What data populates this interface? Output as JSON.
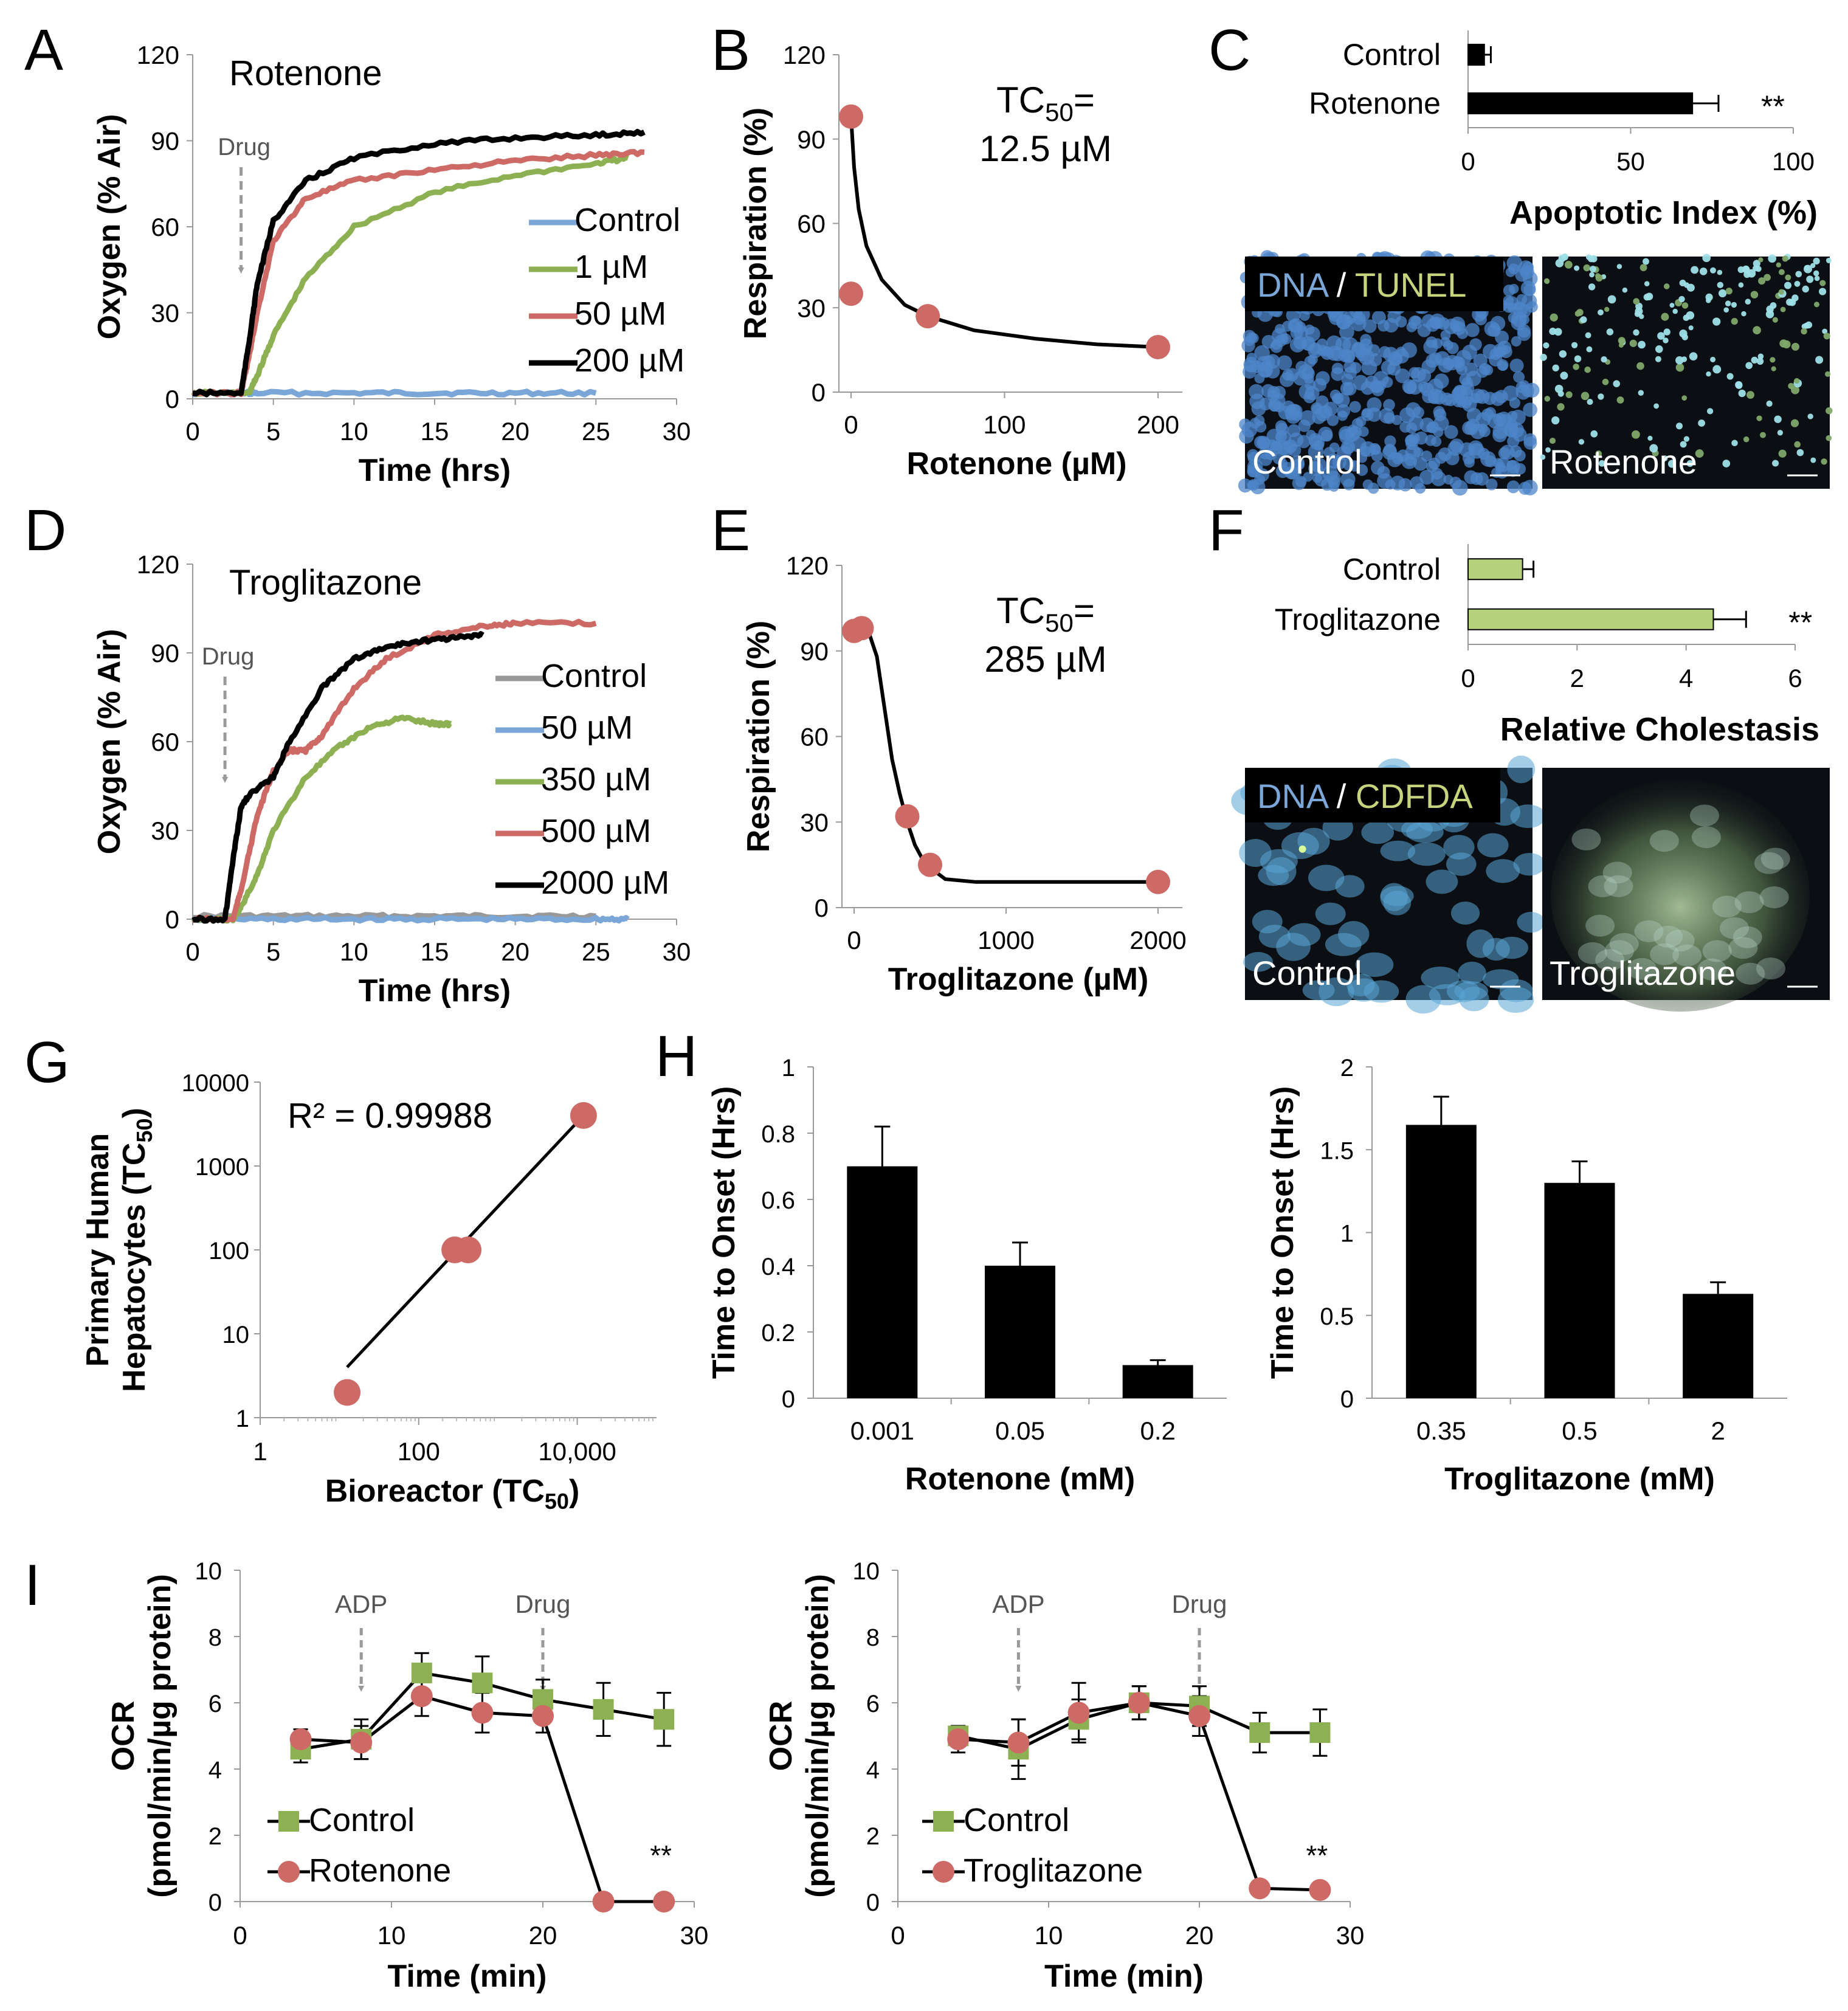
{
  "colors": {
    "control_blue": "#7aa6d8",
    "green": "#8db052",
    "red": "#cd6a66",
    "black": "#000000",
    "gray": "#999999",
    "dark_gray": "#888888",
    "bar_green": "#b5d17b",
    "micro_bg": "#0b0f14"
  },
  "panel_letters": [
    "A",
    "B",
    "C",
    "D",
    "E",
    "F",
    "G",
    "H",
    "I"
  ],
  "chart_data": [
    {
      "id": "A",
      "type": "line",
      "title": "Rotenone",
      "xlabel": "Time (hrs)",
      "ylabel": "Oxygen (% Air)",
      "xlim": [
        0,
        30
      ],
      "ylim": [
        0,
        120
      ],
      "xticks": [
        "0",
        "5",
        "10",
        "15",
        "20",
        "25",
        "30"
      ],
      "yticks": [
        "0",
        "30",
        "60",
        "90",
        "120"
      ],
      "annotation": "Drug",
      "annotation_x": 3,
      "series": [
        {
          "name": "Control",
          "color": "#7aa6d8",
          "x": [
            0,
            3,
            4,
            10,
            15,
            20,
            25
          ],
          "y": [
            2,
            2,
            2,
            2,
            2,
            2,
            2
          ]
        },
        {
          "name": "1 µM",
          "color": "#8db052",
          "x": [
            0,
            3.5,
            4,
            5,
            7,
            10,
            15,
            20,
            25,
            27
          ],
          "y": [
            2,
            2,
            8,
            22,
            42,
            60,
            72,
            78,
            82,
            84
          ]
        },
        {
          "name": "50 µM",
          "color": "#cd6a66",
          "x": [
            0,
            3,
            3.5,
            4,
            5,
            7,
            10,
            15,
            20,
            25,
            28
          ],
          "y": [
            2,
            2,
            15,
            30,
            55,
            70,
            76,
            80,
            83,
            85,
            86
          ]
        },
        {
          "name": "200 µM",
          "color": "#000000",
          "x": [
            0,
            3,
            3.5,
            4,
            5,
            7,
            10,
            15,
            20,
            25,
            28
          ],
          "y": [
            2,
            2,
            20,
            40,
            62,
            76,
            84,
            89,
            91,
            92,
            93
          ]
        }
      ]
    },
    {
      "id": "B",
      "type": "scatter",
      "title": "TC50= 12.5 µM",
      "xlabel": "Rotenone (µM)",
      "ylabel": "Respiration (%)",
      "xlim": [
        0,
        200
      ],
      "ylim": [
        0,
        120
      ],
      "xticks": [
        "0",
        "100",
        "200"
      ],
      "yticks": [
        "0",
        "30",
        "60",
        "90",
        "120"
      ],
      "points": [
        {
          "x": 0,
          "y": 98
        },
        {
          "x": 0,
          "y": 35
        },
        {
          "x": 50,
          "y": 27
        },
        {
          "x": 200,
          "y": 16
        }
      ],
      "fit": {
        "x": [
          0,
          2,
          5,
          10,
          20,
          35,
          50,
          80,
          120,
          160,
          200
        ],
        "y": [
          98,
          80,
          65,
          52,
          40,
          31,
          27,
          22,
          19,
          17,
          16
        ]
      }
    },
    {
      "id": "C",
      "type": "bar",
      "orientation": "horizontal",
      "xlabel": "Apoptotic Index (%)",
      "categories": [
        "Control",
        "Rotenone"
      ],
      "values": [
        5,
        69
      ],
      "errors": [
        2,
        8
      ],
      "xlim": [
        0,
        100
      ],
      "xticks": [
        "0",
        "50",
        "100"
      ],
      "significance": "**"
    },
    {
      "id": "D",
      "type": "line",
      "title": "Troglitazone",
      "xlabel": "Time (hrs)",
      "ylabel": "Oxygen (% Air)",
      "xlim": [
        0,
        30
      ],
      "ylim": [
        0,
        120
      ],
      "xticks": [
        "0",
        "5",
        "10",
        "15",
        "20",
        "25",
        "30"
      ],
      "yticks": [
        "0",
        "30",
        "60",
        "90",
        "120"
      ],
      "annotation": "Drug",
      "annotation_x": 2,
      "series": [
        {
          "name": "Control",
          "color": "#999999",
          "x": [
            0,
            5,
            10,
            15,
            20,
            25
          ],
          "y": [
            1,
            1,
            1,
            1,
            1,
            1
          ]
        },
        {
          "name": "50 µM",
          "color": "#7aa6d8",
          "x": [
            0,
            5,
            10,
            15,
            20,
            25,
            27
          ],
          "y": [
            0,
            0,
            0,
            0,
            0,
            0,
            0
          ]
        },
        {
          "name": "350 µM",
          "color": "#8db052",
          "x": [
            0,
            2.5,
            3,
            4,
            5,
            7,
            9,
            11,
            13,
            15,
            16
          ],
          "y": [
            0,
            0,
            4,
            15,
            30,
            48,
            58,
            65,
            68,
            66,
            66
          ]
        },
        {
          "name": "500 µM",
          "color": "#cd6a66",
          "x": [
            0,
            2.5,
            3,
            4,
            5,
            6,
            7,
            8,
            10,
            12,
            15,
            18,
            20,
            25
          ],
          "y": [
            0,
            0,
            10,
            35,
            50,
            57,
            57,
            62,
            78,
            88,
            96,
            99,
            100,
            100
          ]
        },
        {
          "name": "2000 µM",
          "color": "#000000",
          "x": [
            0,
            2,
            2.5,
            3,
            3.5,
            5,
            6,
            8,
            10,
            12,
            14,
            16,
            18
          ],
          "y": [
            0,
            0,
            20,
            38,
            42,
            48,
            60,
            78,
            88,
            92,
            94,
            95,
            96
          ]
        }
      ]
    },
    {
      "id": "E",
      "type": "scatter",
      "title": "TC50= 285 µM",
      "xlabel": "Troglitazone (µM)",
      "ylabel": "Respiration (%)",
      "xlim": [
        0,
        2000
      ],
      "ylim": [
        0,
        120
      ],
      "xticks": [
        "0",
        "1000",
        "2000"
      ],
      "yticks": [
        "0",
        "30",
        "60",
        "90",
        "120"
      ],
      "points": [
        {
          "x": 0,
          "y": 97
        },
        {
          "x": 50,
          "y": 98
        },
        {
          "x": 350,
          "y": 32
        },
        {
          "x": 500,
          "y": 15
        },
        {
          "x": 2000,
          "y": 9
        }
      ],
      "fit": {
        "x": [
          0,
          100,
          150,
          200,
          250,
          300,
          350,
          400,
          450,
          500,
          600,
          800,
          1200,
          2000
        ],
        "y": [
          98,
          96,
          88,
          70,
          52,
          40,
          30,
          22,
          17,
          14,
          10,
          9,
          9,
          9
        ]
      }
    },
    {
      "id": "F",
      "type": "bar",
      "orientation": "horizontal",
      "xlabel": "Relative Cholestasis",
      "categories": [
        "Control",
        "Troglitazone"
      ],
      "values": [
        1,
        4.5
      ],
      "errors": [
        0.2,
        0.6
      ],
      "xlim": [
        0,
        6
      ],
      "xticks": [
        "0",
        "2",
        "4",
        "6"
      ],
      "significance": "**"
    },
    {
      "id": "G",
      "type": "scatter",
      "xscale": "log",
      "yscale": "log",
      "annotation": "R² = 0.99988",
      "xlabel": "Bioreactor (TC50)",
      "ylabel": [
        "Primary Human",
        "Hepatocytes (TC50)"
      ],
      "xlim": [
        1,
        100000
      ],
      "ylim": [
        1,
        10000
      ],
      "xticks": [
        "1",
        "100",
        "10,000"
      ],
      "yticks": [
        "1",
        "10",
        "100",
        "1000",
        "10000"
      ],
      "points": [
        {
          "x": 12.5,
          "y": 2
        },
        {
          "x": 285,
          "y": 100
        },
        {
          "x": 420,
          "y": 100
        },
        {
          "x": 12000,
          "y": 4000
        }
      ],
      "fit": {
        "x": [
          12.5,
          12000
        ],
        "y": [
          4,
          4000
        ]
      }
    },
    {
      "id": "H1",
      "type": "bar",
      "xlabel": "Rotenone (mM)",
      "ylabel": "Time to Onset (Hrs)",
      "categories": [
        "0.001",
        "0.05",
        "0.2"
      ],
      "values": [
        0.7,
        0.4,
        0.1
      ],
      "errors": [
        0.12,
        0.07,
        0.015
      ],
      "ylim": [
        0,
        1
      ],
      "yticks": [
        "0",
        "0.2",
        "0.4",
        "0.6",
        "0.8",
        "1"
      ]
    },
    {
      "id": "H2",
      "type": "bar",
      "xlabel": "Troglitazone (mM)",
      "ylabel": "Time to Onset (Hrs)",
      "categories": [
        "0.35",
        "0.5",
        "2"
      ],
      "values": [
        1.65,
        1.3,
        0.63
      ],
      "errors": [
        0.17,
        0.13,
        0.07
      ],
      "ylim": [
        0,
        2
      ],
      "yticks": [
        "0",
        "0.5",
        "1",
        "1.5",
        "2"
      ]
    },
    {
      "id": "I1",
      "type": "line",
      "xlabel": "Time (min)",
      "ylabel": [
        "OCR",
        "(pmol/min/µg protein)"
      ],
      "xlim": [
        0,
        30
      ],
      "ylim": [
        0,
        10
      ],
      "xticks": [
        "0",
        "10",
        "20",
        "30"
      ],
      "yticks": [
        "0",
        "2",
        "4",
        "6",
        "8",
        "10"
      ],
      "annotations": [
        {
          "text": "ADP",
          "x": 8
        },
        {
          "text": "Drug",
          "x": 20
        }
      ],
      "significance": "**",
      "series": [
        {
          "name": "Control",
          "marker": "square",
          "color": "#8db052",
          "x": [
            4,
            8,
            12,
            16,
            20,
            24,
            28
          ],
          "y": [
            4.6,
            4.9,
            6.9,
            6.6,
            6.1,
            5.8,
            5.5
          ],
          "err": [
            0.4,
            0.6,
            0.6,
            0.8,
            0.6,
            0.8,
            0.8
          ]
        },
        {
          "name": "Rotenone",
          "marker": "circle",
          "color": "#cd6a66",
          "x": [
            4,
            8,
            12,
            16,
            20,
            24,
            28
          ],
          "y": [
            4.9,
            4.8,
            6.2,
            5.7,
            5.6,
            0,
            0
          ],
          "err": [
            0.3,
            0.5,
            0.6,
            0.6,
            0.5,
            0,
            0
          ]
        }
      ]
    },
    {
      "id": "I2",
      "type": "line",
      "xlabel": "Time (min)",
      "ylabel": [
        "OCR",
        "(pmol/min/µg protein)"
      ],
      "xlim": [
        0,
        30
      ],
      "ylim": [
        0,
        10
      ],
      "xticks": [
        "0",
        "10",
        "20",
        "30"
      ],
      "yticks": [
        "0",
        "2",
        "4",
        "6",
        "8",
        "10"
      ],
      "annotations": [
        {
          "text": "ADP",
          "x": 8
        },
        {
          "text": "Drug",
          "x": 20
        }
      ],
      "significance": "**",
      "series": [
        {
          "name": "Control",
          "marker": "square",
          "color": "#8db052",
          "x": [
            4,
            8,
            12,
            16,
            20,
            24,
            28
          ],
          "y": [
            5.0,
            4.6,
            5.5,
            6.0,
            5.9,
            5.1,
            5.1
          ],
          "err": [
            0.3,
            0.9,
            0.6,
            0.5,
            0.6,
            0.6,
            0.7
          ]
        },
        {
          "name": "Troglitazone",
          "marker": "circle",
          "color": "#cd6a66",
          "x": [
            4,
            8,
            12,
            16,
            20,
            24,
            28
          ],
          "y": [
            4.9,
            4.8,
            5.7,
            6.0,
            5.6,
            0.4,
            0.35
          ],
          "err": [
            0.4,
            0.7,
            0.9,
            0.5,
            0.6,
            0,
            0
          ]
        }
      ]
    }
  ],
  "micrographs": [
    {
      "id": "C",
      "stain_label_a": "DNA",
      "sep": " / ",
      "stain_label_b": "TUNEL",
      "stain_color_a": "#7aa6d8",
      "stain_color_b": "#c7d47e",
      "left_label": "Control",
      "right_label": "Rotenone"
    },
    {
      "id": "F",
      "stain_label_a": "DNA",
      "sep": " / ",
      "stain_label_b": "CDFDA",
      "stain_color_a": "#7aa6d8",
      "stain_color_b": "#c7d47e",
      "left_label": "Control",
      "right_label": "Troglitazone"
    }
  ]
}
